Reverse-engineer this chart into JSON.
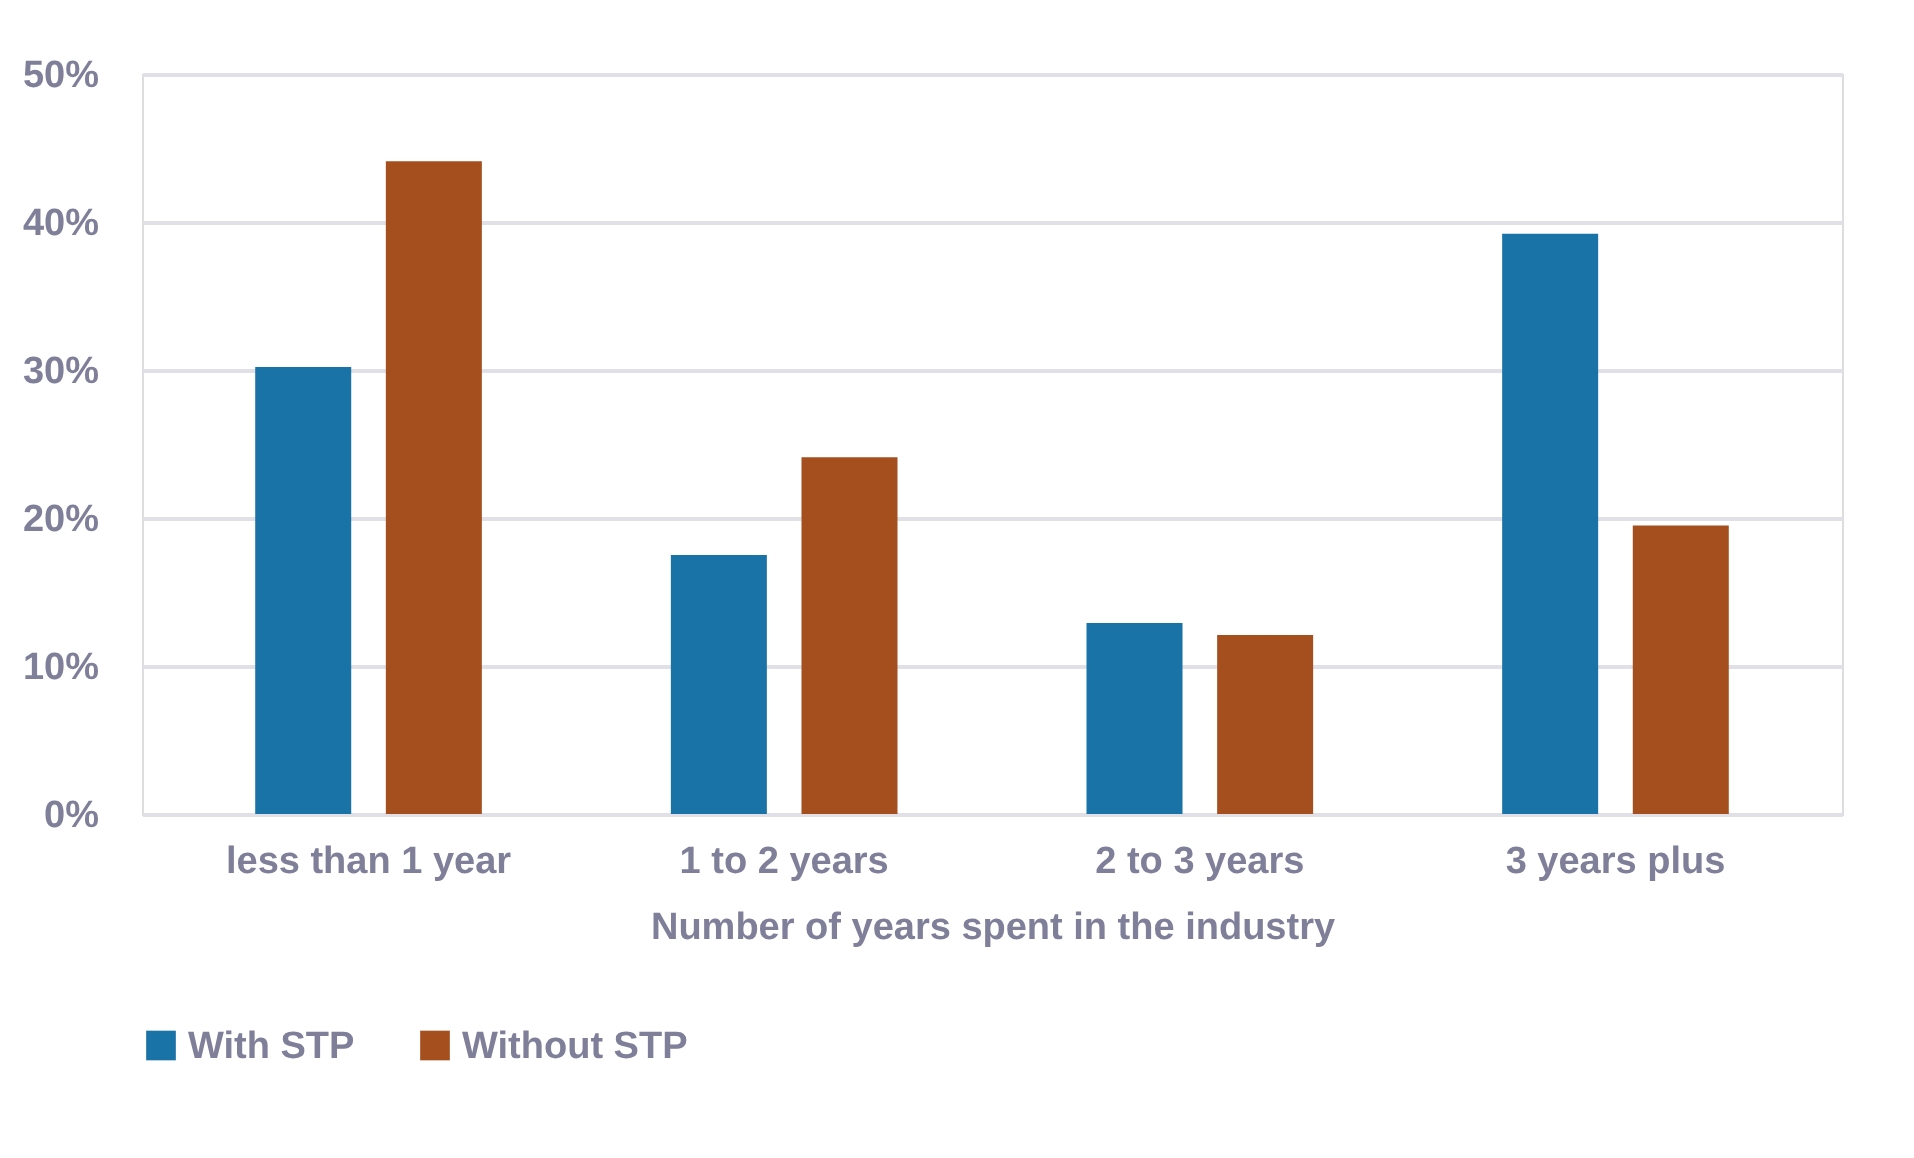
{
  "chart_data": {
    "type": "bar",
    "xlabel": "Number of years spent in the industry",
    "categories": [
      "less than 1 year",
      "1 to 2 years",
      "2 to 3 years",
      "3 years plus"
    ],
    "series": [
      {
        "name": "With STP",
        "color": "#1a73a6",
        "values": [
          30.2,
          17.5,
          12.9,
          39.2
        ]
      },
      {
        "name": "Without STP",
        "color": "#a54f1e",
        "values": [
          44.1,
          24.1,
          12.1,
          19.5
        ]
      }
    ],
    "ylim": [
      0,
      50
    ],
    "yticks": [
      {
        "value": 0,
        "label": "0%"
      },
      {
        "value": 10,
        "label": "10%"
      },
      {
        "value": 20,
        "label": "20%"
      },
      {
        "value": 30,
        "label": "30%"
      },
      {
        "value": 40,
        "label": "40%"
      },
      {
        "value": 50,
        "label": "50%"
      }
    ],
    "grid": "y",
    "legend": "bottom"
  }
}
